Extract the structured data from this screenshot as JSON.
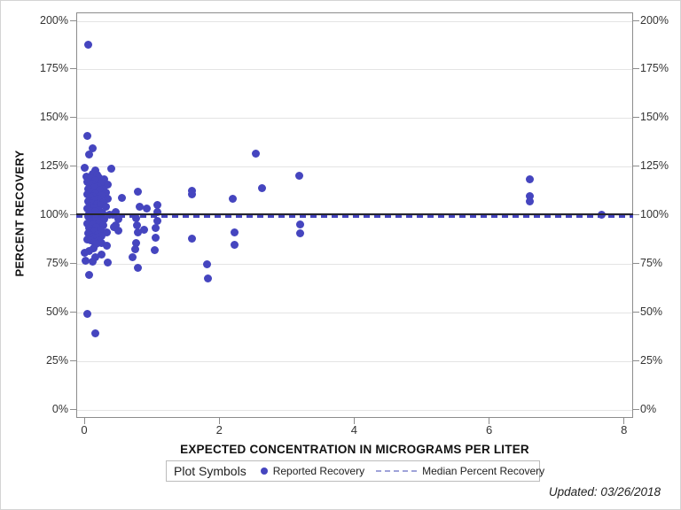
{
  "figure": {
    "footer_note": "Updated: 03/26/2018"
  },
  "chart_data": {
    "type": "scatter",
    "title": "",
    "xlabel": "EXPECTED CONCENTRATION IN MICROGRAMS PER LITER",
    "ylabel": "PERCENT RECOVERY",
    "x_ticks": [
      0,
      2,
      4,
      6,
      8
    ],
    "y_ticks_percent": [
      0,
      25,
      50,
      75,
      100,
      125,
      150,
      175,
      200
    ],
    "y_tick_suffix": "%",
    "xlim": [
      -0.12,
      8.13
    ],
    "ylim_percent": [
      -4.5,
      204
    ],
    "grid": "horizontal",
    "legend_position": "bottom",
    "legend": {
      "title": "Plot Symbols",
      "items": [
        {
          "label": "Reported Recovery",
          "marker": "dot"
        },
        {
          "label": "Median Percent Recovery",
          "marker": "dashed-line"
        }
      ]
    },
    "colors": {
      "marker": "#4545BF",
      "median_line": "#4343BE",
      "reference_line": "#26262E",
      "legend_dash_sample": "#9FA3D9",
      "gridline": "#E4E4E4",
      "axis_frame": "#8C8C8C"
    },
    "reference_line_percent": 100,
    "median_percent_recovery": 99.1,
    "series": [
      {
        "name": "Reported Recovery",
        "points": [
          [
            0.06,
            187.5
          ],
          [
            0.05,
            140.5
          ],
          [
            0.12,
            134
          ],
          [
            0.07,
            131
          ],
          [
            0.01,
            124.2
          ],
          [
            0.4,
            123.8
          ],
          [
            0.16,
            122.7
          ],
          [
            0.13,
            121
          ],
          [
            0.03,
            119.7
          ],
          [
            0.19,
            120.3
          ],
          [
            0.22,
            119
          ],
          [
            0.1,
            118.6
          ],
          [
            0.3,
            118
          ],
          [
            0.16,
            117.6
          ],
          [
            0.05,
            117
          ],
          [
            0.25,
            116.4
          ],
          [
            0.12,
            116
          ],
          [
            0.35,
            115.4
          ],
          [
            0.08,
            115
          ],
          [
            0.2,
            114.6
          ],
          [
            0.15,
            114
          ],
          [
            0.28,
            113.4
          ],
          [
            0.06,
            113
          ],
          [
            0.23,
            112.6
          ],
          [
            0.1,
            112
          ],
          [
            0.32,
            111.4
          ],
          [
            0.17,
            111
          ],
          [
            0.05,
            110.6
          ],
          [
            0.26,
            110
          ],
          [
            0.12,
            109.6
          ],
          [
            0.08,
            109
          ],
          [
            0.21,
            108.4
          ],
          [
            0.35,
            108
          ],
          [
            0.15,
            107.6
          ],
          [
            0.06,
            107
          ],
          [
            0.28,
            106.4
          ],
          [
            0.11,
            106
          ],
          [
            0.19,
            105.6
          ],
          [
            0.24,
            105
          ],
          [
            0.08,
            104.4
          ],
          [
            0.32,
            104
          ],
          [
            0.14,
            103.6
          ],
          [
            0.05,
            103
          ],
          [
            0.22,
            102.4
          ],
          [
            0.1,
            102
          ],
          [
            0.17,
            101.6
          ],
          [
            0.27,
            101
          ],
          [
            0.07,
            100.4
          ],
          [
            0.38,
            100.2
          ],
          [
            0.13,
            100
          ],
          [
            0.2,
            99.6
          ],
          [
            0.06,
            99
          ],
          [
            0.25,
            98.4
          ],
          [
            0.11,
            98
          ],
          [
            0.3,
            97.6
          ],
          [
            0.16,
            97
          ],
          [
            0.08,
            96.4
          ],
          [
            0.22,
            96
          ],
          [
            0.05,
            95.6
          ],
          [
            0.13,
            95
          ],
          [
            0.28,
            94.4
          ],
          [
            0.18,
            93.6
          ],
          [
            0.07,
            93
          ],
          [
            0.24,
            92.4
          ],
          [
            0.11,
            92
          ],
          [
            0.15,
            91.4
          ],
          [
            0.33,
            91
          ],
          [
            0.06,
            90.6
          ],
          [
            0.2,
            90
          ],
          [
            0.09,
            89.4
          ],
          [
            0.26,
            89
          ],
          [
            0.13,
            88.6
          ],
          [
            0.17,
            88
          ],
          [
            0.05,
            87.4
          ],
          [
            0.22,
            87
          ],
          [
            0.1,
            86.6
          ],
          [
            0.15,
            86
          ],
          [
            0.25,
            85.4
          ],
          [
            0.18,
            84.8
          ],
          [
            0.33,
            84
          ],
          [
            0.14,
            82.5
          ],
          [
            0.07,
            81.5
          ],
          [
            0.01,
            80.2
          ],
          [
            0.25,
            79.5
          ],
          [
            0.16,
            78.2
          ],
          [
            0.02,
            76.4
          ],
          [
            0.13,
            75.8
          ],
          [
            0.35,
            75.6
          ],
          [
            0.43,
            99.9
          ],
          [
            0.47,
            101.5
          ],
          [
            0.56,
            108.5
          ],
          [
            0.51,
            97.5
          ],
          [
            0.46,
            94.6
          ],
          [
            0.44,
            93.4
          ],
          [
            0.5,
            92
          ],
          [
            0.8,
            111.7
          ],
          [
            1.08,
            105.2
          ],
          [
            0.82,
            104.2
          ],
          [
            0.92,
            103.3
          ],
          [
            1.08,
            101.5
          ],
          [
            0.77,
            98.4
          ],
          [
            1.08,
            96.9
          ],
          [
            0.78,
            94.6
          ],
          [
            1.06,
            93.1
          ],
          [
            0.89,
            92.3
          ],
          [
            0.8,
            90.8
          ],
          [
            1.06,
            88.1
          ],
          [
            0.77,
            85.5
          ],
          [
            0.76,
            82.4
          ],
          [
            1.04,
            81.7
          ],
          [
            0.72,
            78.3
          ],
          [
            0.8,
            72.5
          ],
          [
            0.07,
            69
          ],
          [
            0.05,
            49
          ],
          [
            0.16,
            39
          ],
          [
            1.6,
            112.5
          ],
          [
            1.6,
            110.3
          ],
          [
            1.6,
            87.8
          ],
          [
            1.82,
            74.6
          ],
          [
            1.83,
            67.3
          ],
          [
            2.2,
            108
          ],
          [
            2.23,
            91
          ],
          [
            2.23,
            84.7
          ],
          [
            2.54,
            131.3
          ],
          [
            2.63,
            113.6
          ],
          [
            3.19,
            120
          ],
          [
            3.2,
            94.9
          ],
          [
            3.2,
            90.3
          ],
          [
            6.6,
            118
          ],
          [
            6.6,
            109.5
          ],
          [
            6.6,
            107
          ],
          [
            7.67,
            99.8
          ]
        ]
      }
    ]
  }
}
